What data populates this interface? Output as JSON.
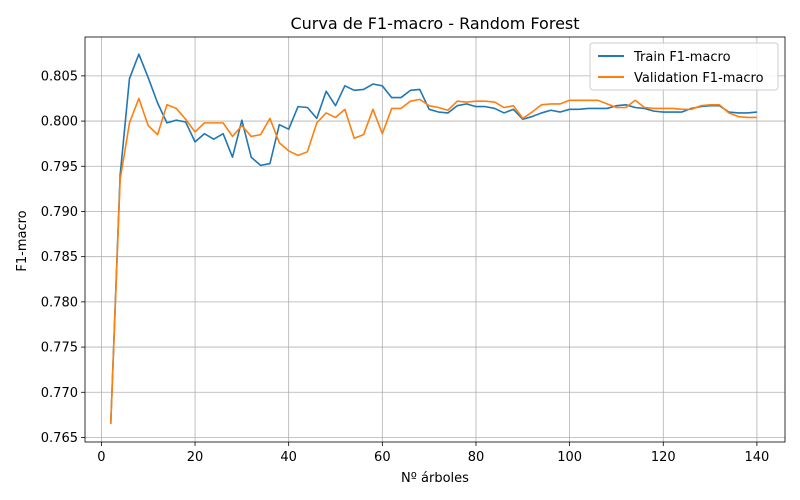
{
  "chart_data": {
    "type": "line",
    "title": "Curva de F1-macro - Random Forest",
    "xlabel": "Nº árboles",
    "ylabel": "F1-macro",
    "xlim": [
      -3.5,
      146
    ],
    "ylim": [
      0.7645,
      0.8093
    ],
    "xticks": [
      0,
      20,
      40,
      60,
      80,
      100,
      120,
      140
    ],
    "yticks": [
      0.765,
      0.77,
      0.775,
      0.78,
      0.785,
      0.79,
      0.795,
      0.8,
      0.805
    ],
    "grid": true,
    "legend_position": "top-right",
    "x": [
      2,
      4,
      6,
      8,
      10,
      12,
      14,
      16,
      18,
      20,
      22,
      24,
      26,
      28,
      30,
      32,
      34,
      36,
      38,
      40,
      42,
      44,
      46,
      48,
      50,
      52,
      54,
      56,
      58,
      60,
      62,
      64,
      66,
      68,
      70,
      72,
      74,
      76,
      78,
      80,
      82,
      84,
      86,
      88,
      90,
      92,
      94,
      96,
      98,
      100,
      102,
      104,
      106,
      108,
      110,
      112,
      114,
      116,
      118,
      120,
      122,
      124,
      126,
      128,
      130,
      132,
      134,
      136,
      138,
      140
    ],
    "series": [
      {
        "name": "Train F1-macro",
        "color": "#1f77b4",
        "values": [
          0.7665,
          0.794,
          0.8047,
          0.8074,
          0.8048,
          0.802,
          0.7998,
          0.8001,
          0.7999,
          0.7977,
          0.7986,
          0.798,
          0.7986,
          0.796,
          0.8001,
          0.796,
          0.7951,
          0.7953,
          0.7996,
          0.7991,
          0.8016,
          0.8015,
          0.8003,
          0.8033,
          0.8017,
          0.8039,
          0.8034,
          0.8035,
          0.8041,
          0.8039,
          0.8026,
          0.8026,
          0.8034,
          0.8035,
          0.8013,
          0.801,
          0.8009,
          0.8017,
          0.8019,
          0.8016,
          0.8016,
          0.8014,
          0.8009,
          0.8013,
          0.8002,
          0.8005,
          0.8009,
          0.8012,
          0.801,
          0.8013,
          0.8013,
          0.8014,
          0.8014,
          0.8014,
          0.8017,
          0.8018,
          0.8015,
          0.8014,
          0.8011,
          0.801,
          0.801,
          0.801,
          0.8014,
          0.8016,
          0.8017,
          0.8017,
          0.801,
          0.8009,
          0.8009,
          0.801
        ]
      },
      {
        "name": "Validation F1-macro",
        "color": "#ff7f0e",
        "values": [
          0.7665,
          0.7935,
          0.7998,
          0.8025,
          0.7995,
          0.7985,
          0.8018,
          0.8014,
          0.8002,
          0.7988,
          0.7998,
          0.7998,
          0.7998,
          0.7983,
          0.7995,
          0.7983,
          0.7985,
          0.8003,
          0.7976,
          0.7967,
          0.7962,
          0.7966,
          0.7998,
          0.8009,
          0.8004,
          0.8013,
          0.7981,
          0.7985,
          0.8013,
          0.7986,
          0.8014,
          0.8014,
          0.8022,
          0.8024,
          0.8017,
          0.8015,
          0.8012,
          0.8022,
          0.8021,
          0.8022,
          0.8022,
          0.8021,
          0.8015,
          0.8017,
          0.8003,
          0.801,
          0.8018,
          0.8019,
          0.8019,
          0.8023,
          0.8023,
          0.8023,
          0.8023,
          0.8019,
          0.8015,
          0.8015,
          0.8023,
          0.8015,
          0.8014,
          0.8014,
          0.8014,
          0.8013,
          0.8013,
          0.8017,
          0.8018,
          0.8018,
          0.8009,
          0.8005,
          0.8004,
          0.8004
        ]
      }
    ]
  }
}
